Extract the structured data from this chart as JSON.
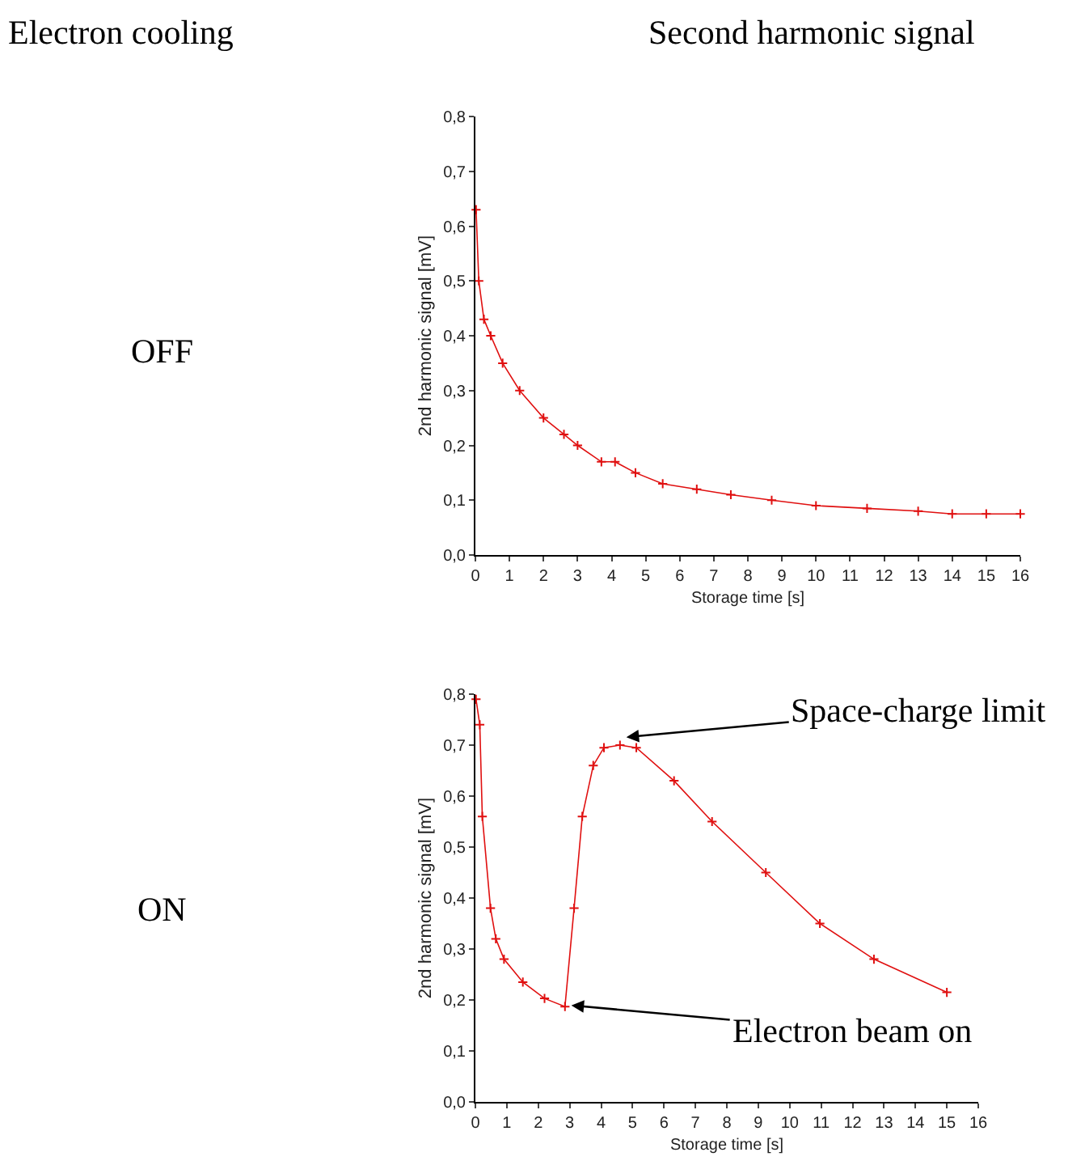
{
  "chart_data": [
    {
      "type": "line",
      "xlabel": "Storage time [s]",
      "ylabel": "2nd harmonic signal [mV]",
      "marker": "cross",
      "xlim": [
        0,
        16
      ],
      "xticks": [
        0,
        1,
        2,
        3,
        4,
        5,
        6,
        7,
        8,
        9,
        10,
        11,
        12,
        13,
        14,
        15,
        16
      ],
      "ylim": [
        0,
        0.8
      ],
      "yticks": [
        {
          "value": 0,
          "label": "0,0"
        },
        {
          "value": 0.1,
          "label": "0,1"
        },
        {
          "value": 0.2,
          "label": "0,2"
        },
        {
          "value": 0.3,
          "label": "0,3"
        },
        {
          "value": 0.4,
          "label": "0,4"
        },
        {
          "value": 0.5,
          "label": "0,5"
        },
        {
          "value": 0.6,
          "label": "0,6"
        },
        {
          "value": 0.7,
          "label": "0,7"
        },
        {
          "value": 0.8,
          "label": "0,8"
        }
      ],
      "annotations": [
        "Electron cooling",
        "Second harmonic signal",
        "OFF"
      ],
      "series": [
        {
          "color": "#e01010",
          "x": [
            0.02,
            0.1,
            0.25,
            0.45,
            0.8,
            1.3,
            2,
            2.6,
            3,
            3.7,
            4.1,
            4.7,
            5.5,
            6.5,
            7.5,
            8.7,
            10,
            11.5,
            13,
            14,
            15,
            16
          ],
          "values": [
            0.63,
            0.5,
            0.43,
            0.4,
            0.35,
            0.3,
            0.25,
            0.22,
            0.2,
            0.17,
            0.17,
            0.15,
            0.13,
            0.12,
            0.11,
            0.1,
            0.09,
            0.085,
            0.08,
            0.075,
            0.075,
            0.075
          ]
        }
      ]
    },
    {
      "type": "line",
      "xlabel": "Storage time [s]",
      "ylabel": "2nd harmonic signal [mV]",
      "marker": "cross",
      "xlim": [
        0,
        16
      ],
      "xticks": [
        0,
        1,
        2,
        3,
        4,
        5,
        6,
        7,
        8,
        9,
        10,
        11,
        12,
        13,
        14,
        15,
        16
      ],
      "ylim": [
        0,
        0.8
      ],
      "yticks": [
        {
          "value": 0,
          "label": "0,0"
        },
        {
          "value": 0.1,
          "label": "0,1"
        },
        {
          "value": 0.2,
          "label": "0,2"
        },
        {
          "value": 0.3,
          "label": "0,3"
        },
        {
          "value": 0.4,
          "label": "0,4"
        },
        {
          "value": 0.5,
          "label": "0,5"
        },
        {
          "value": 0.6,
          "label": "0,6"
        },
        {
          "value": 0.7,
          "label": "0,7"
        },
        {
          "value": 0.8,
          "label": "0,8"
        }
      ],
      "annotations": [
        "ON",
        {
          "text": "Space-charge limit",
          "x": 4.7,
          "y": 0.715
        },
        {
          "text": "Electron beam on",
          "x": 2.95,
          "y": 0.19
        }
      ],
      "series": [
        {
          "color": "#e01010",
          "x": [
            0.02,
            0.14,
            0.22,
            0.48,
            0.65,
            0.91,
            1.51,
            2.2,
            2.85,
            3.14,
            3.4,
            3.75,
            4.09,
            4.6,
            5.12,
            6.32,
            7.53,
            9.24,
            10.96,
            12.68,
            15.0
          ],
          "values": [
            0.79,
            0.74,
            0.56,
            0.38,
            0.32,
            0.28,
            0.235,
            0.203,
            0.187,
            0.38,
            0.56,
            0.66,
            0.695,
            0.7,
            0.695,
            0.63,
            0.55,
            0.45,
            0.35,
            0.28,
            0.215
          ]
        }
      ]
    }
  ]
}
